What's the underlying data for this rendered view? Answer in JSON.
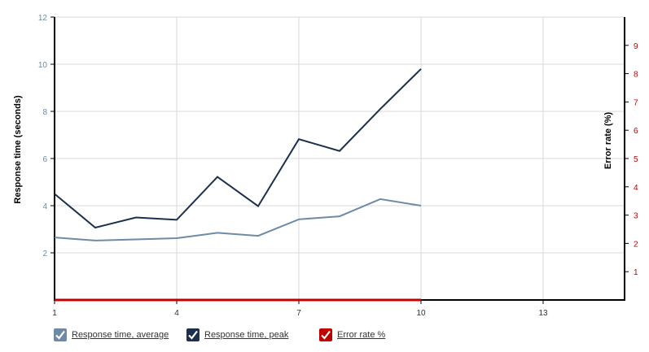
{
  "chart_data": {
    "type": "line",
    "x": [
      1,
      2,
      3,
      4,
      5,
      6,
      7,
      8,
      9,
      10
    ],
    "xlim": [
      1,
      15
    ],
    "x_ticks": [
      "1",
      "4",
      "7",
      "10",
      "13"
    ],
    "ylim_left": [
      0,
      12
    ],
    "y_ticks_left": [
      "2",
      "4",
      "6",
      "8",
      "10",
      "12"
    ],
    "ylim_right": [
      0,
      10
    ],
    "y_ticks_right": [
      "1",
      "2",
      "3",
      "4",
      "5",
      "6",
      "7",
      "8",
      "9"
    ],
    "ylabel_left": "Response time (seconds)",
    "ylabel_right": "Error rate (%)",
    "grid": true,
    "legend_position": "bottom-left",
    "series": [
      {
        "name": "Response time, average",
        "axis": "left",
        "color": "#6e8aa6",
        "values": [
          2.65,
          2.52,
          2.57,
          2.62,
          2.85,
          2.72,
          3.42,
          3.55,
          4.28,
          4.0
        ]
      },
      {
        "name": "Response time, peak",
        "axis": "left",
        "color": "#1c2f4d",
        "values": [
          4.5,
          3.07,
          3.5,
          3.4,
          5.22,
          3.98,
          6.82,
          6.32,
          8.1,
          9.8
        ]
      },
      {
        "name": "Error rate %",
        "axis": "right",
        "color": "#c00000",
        "values": [
          0,
          0,
          0,
          0,
          0,
          0,
          0,
          0,
          0,
          0
        ]
      }
    ]
  },
  "colors": {
    "left_axis_ticks": "#6e8aa6",
    "right_axis_ticks": "#c00000",
    "grid": "#d8d8d8",
    "axis": "#000000"
  }
}
